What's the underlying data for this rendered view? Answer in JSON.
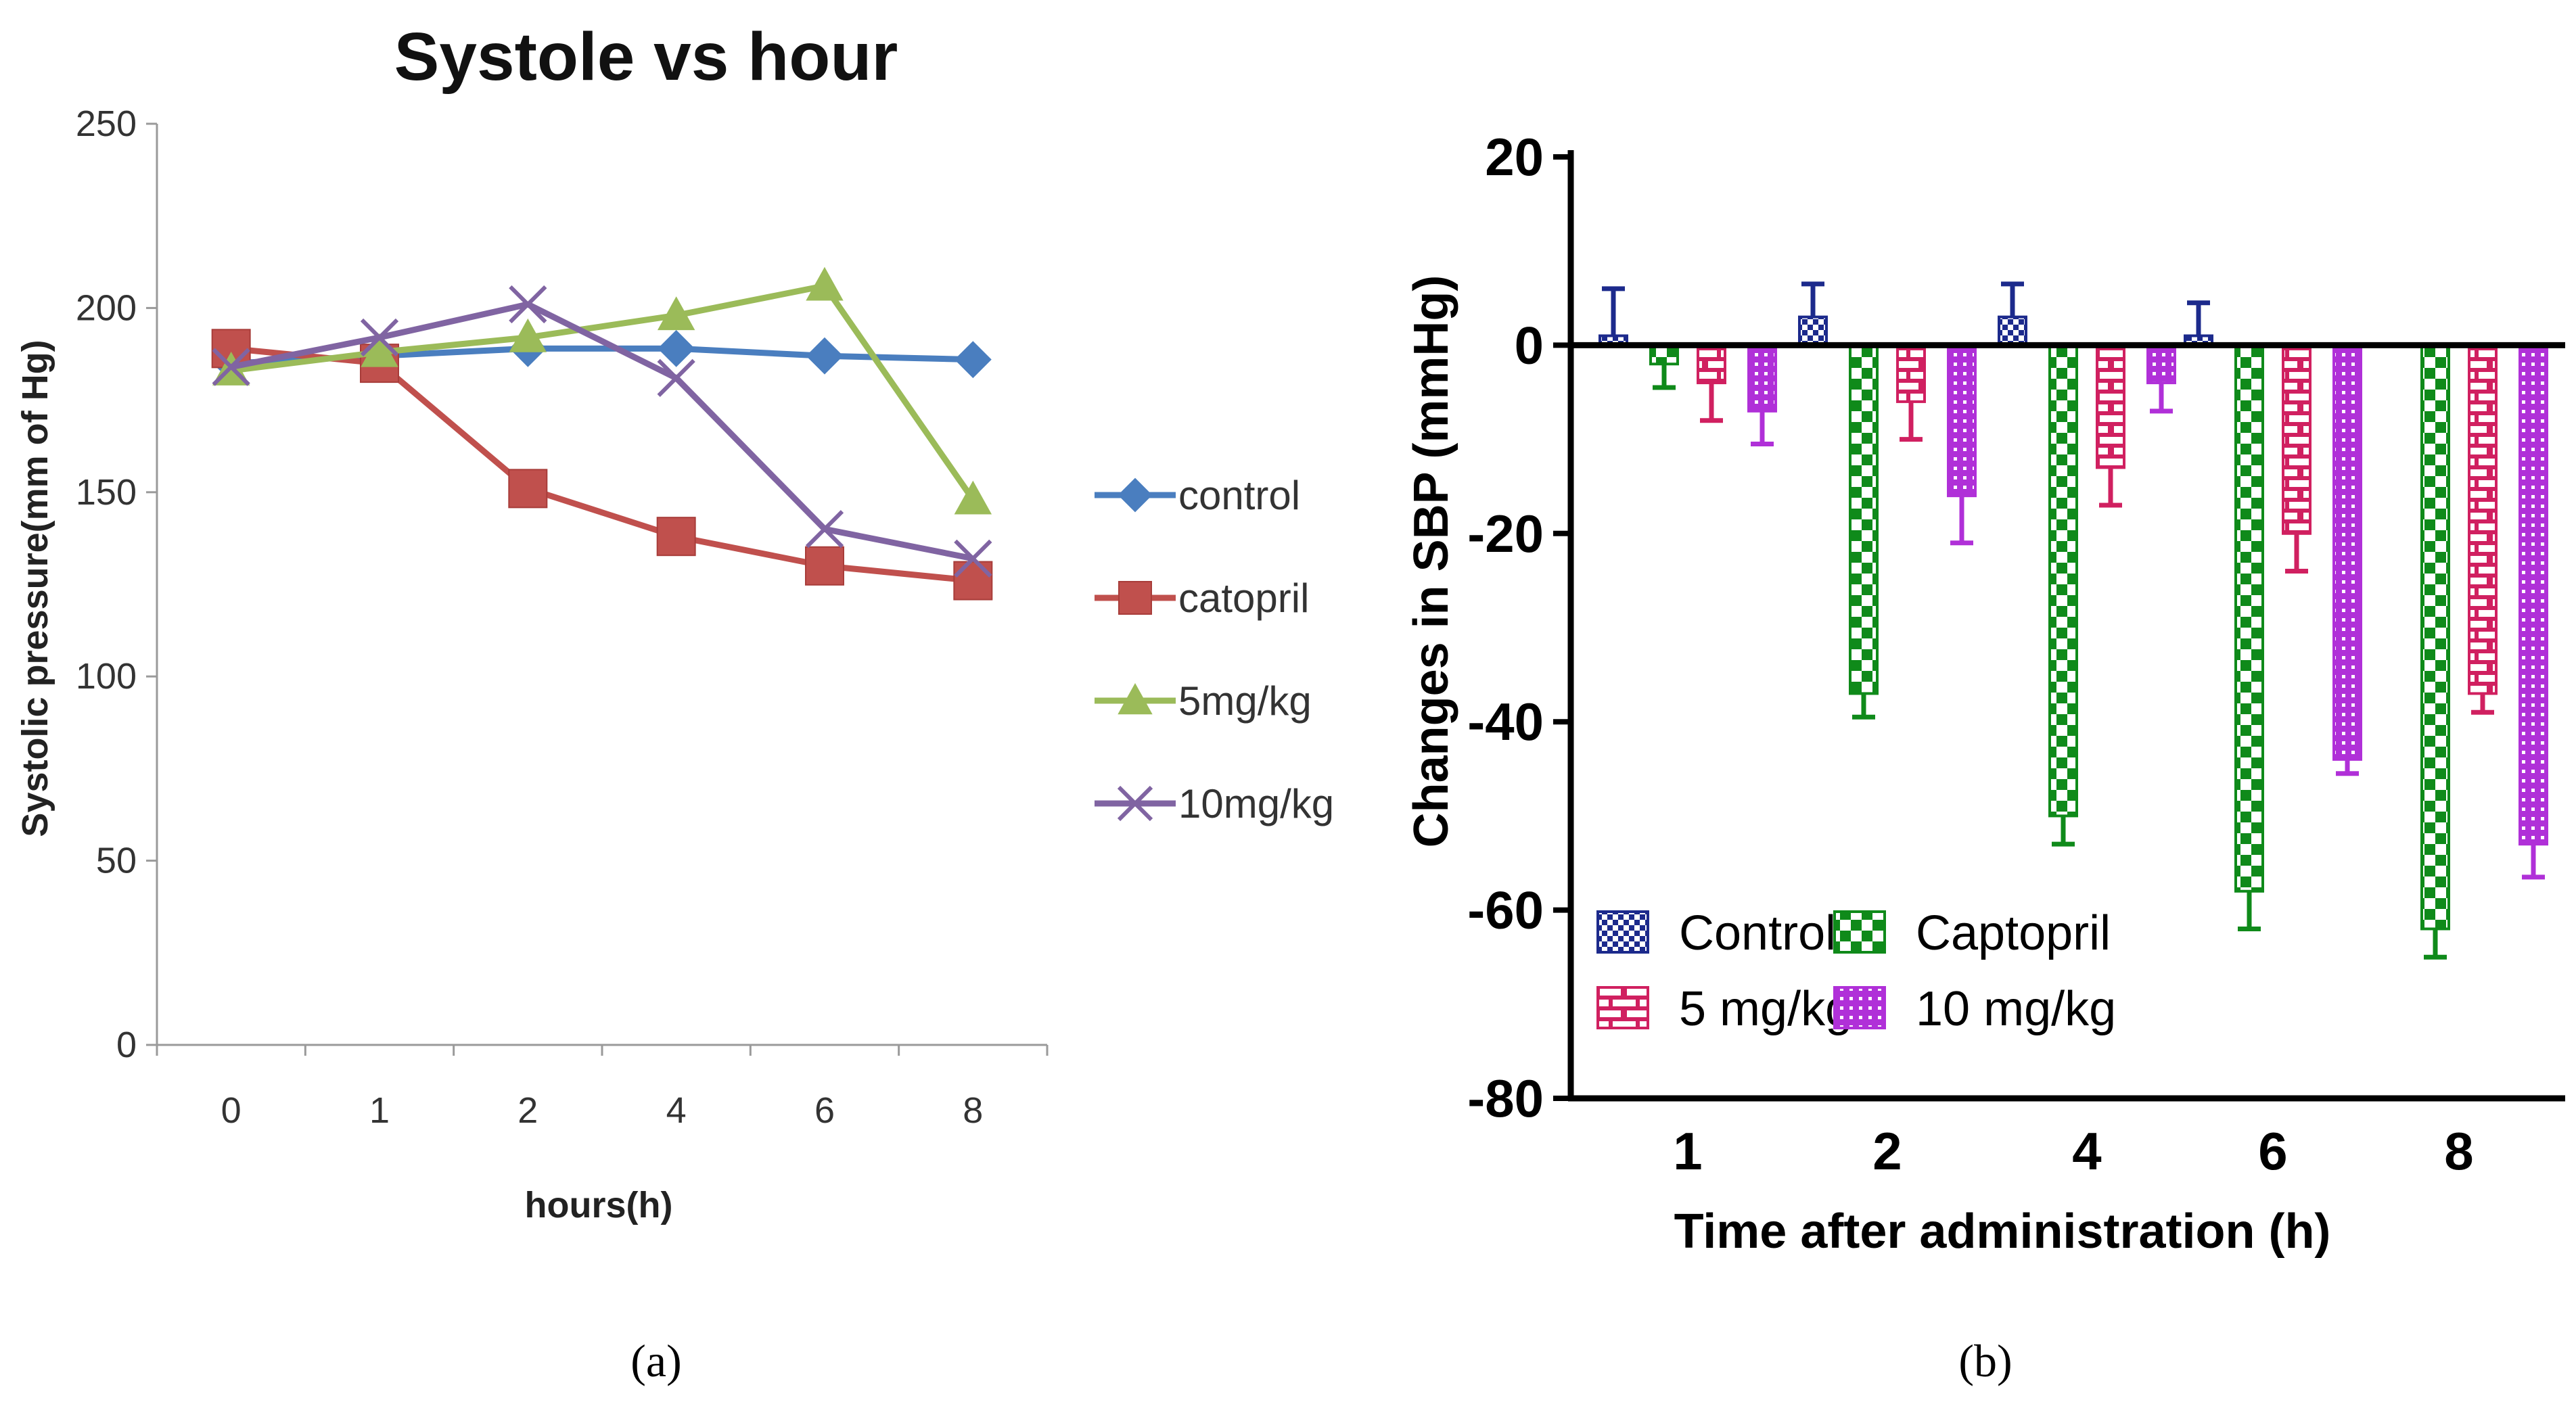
{
  "panel_labels": {
    "a": "(a)",
    "b": "(b)"
  },
  "chart_data": [
    {
      "type": "line",
      "title": "Systole vs hour",
      "xlabel": "hours(h)",
      "ylabel": "Systolic pressure(mm of Hg)",
      "categories": [
        "0",
        "1",
        "2",
        "4",
        "6",
        "8"
      ],
      "ylim": [
        0,
        250
      ],
      "yticks": [
        0,
        50,
        100,
        150,
        200,
        250
      ],
      "grid": false,
      "legend_position": "right",
      "series": [
        {
          "name": "control",
          "marker": "diamond",
          "color": "#4a7ebf",
          "values": [
            185,
            187,
            189,
            189,
            187,
            186
          ]
        },
        {
          "name": "catopril",
          "marker": "square",
          "color": "#c0504d",
          "values": [
            189,
            185,
            151,
            138,
            130,
            126
          ]
        },
        {
          "name": "5mg/kg",
          "marker": "triangle",
          "color": "#9bbb59",
          "values": [
            183,
            188,
            192,
            198,
            206,
            148
          ]
        },
        {
          "name": "10mg/kg",
          "marker": "x",
          "color": "#8064a2",
          "values": [
            184,
            192,
            201,
            181,
            140,
            132
          ]
        }
      ]
    },
    {
      "type": "bar",
      "title": "",
      "xlabel": "Time after administration (h)",
      "ylabel": "Changes in SBP (mmHg)",
      "categories": [
        "1",
        "2",
        "4",
        "6",
        "8"
      ],
      "ylim": [
        -80,
        20
      ],
      "yticks": [
        -80,
        -60,
        -40,
        -20,
        0,
        20
      ],
      "grid": false,
      "legend_position": "bottom-left",
      "series": [
        {
          "name": "Control",
          "pattern": "checker",
          "color": "#1c2a8c",
          "values": [
            1,
            3,
            3,
            1,
            0
          ],
          "errors": [
            5,
            3.5,
            3.5,
            3.5,
            0
          ]
        },
        {
          "name": "Captopril",
          "pattern": "checker",
          "color": "#0f8a1a",
          "values": [
            -2,
            -37,
            -50,
            -58,
            -62
          ],
          "errors": [
            2.5,
            2.5,
            3,
            4,
            3
          ]
        },
        {
          "name": "5 mg/kg",
          "pattern": "brick",
          "color": "#d02060",
          "values": [
            -4,
            -6,
            -13,
            -20,
            -37
          ],
          "errors": [
            4,
            4,
            4,
            4,
            2
          ]
        },
        {
          "name": "10 mg/kg",
          "pattern": "dots",
          "color": "#b030d8",
          "values": [
            -7,
            -16,
            -4,
            -44,
            -53
          ],
          "errors": [
            3.5,
            5,
            3,
            1.5,
            3.5
          ]
        }
      ]
    }
  ]
}
